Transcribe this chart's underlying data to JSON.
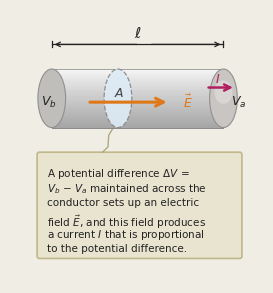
{
  "bg_color": "#f0ede4",
  "cylinder_body_light": "#e8e8e8",
  "cylinder_body_mid": "#cccccc",
  "cylinder_body_dark": "#b0b0b0",
  "cylinder_body_bright": "#f5f5f5",
  "cylinder_end_face": "#c0bfbe",
  "cylinder_end_edge": "#909090",
  "ellipse_cross_color": "#ddeaf5",
  "ellipse_cross_edge": "#888888",
  "arrow_E_color": "#e07818",
  "arrow_I_color": "#b02060",
  "dim_arrow_color": "#222222",
  "text_color": "#222222",
  "box_bg_color": "#e8e4d0",
  "box_edge_color": "#c0b888",
  "connector_color": "#b0a880",
  "label_ell": "$\\ell$",
  "label_A": "$A$",
  "label_Vb": "$V_b$",
  "label_Va": "$V_a$",
  "label_I": "$I$",
  "label_E": "$\\vec{E}$",
  "box_text": "A potential difference $\\Delta V$ =\n$V_b$ − $V_a$ maintained across the\nconductor sets up an electric\nfield $\\vec{E}$, and this field produces\na current $I$ that is proportional\nto the potential difference."
}
